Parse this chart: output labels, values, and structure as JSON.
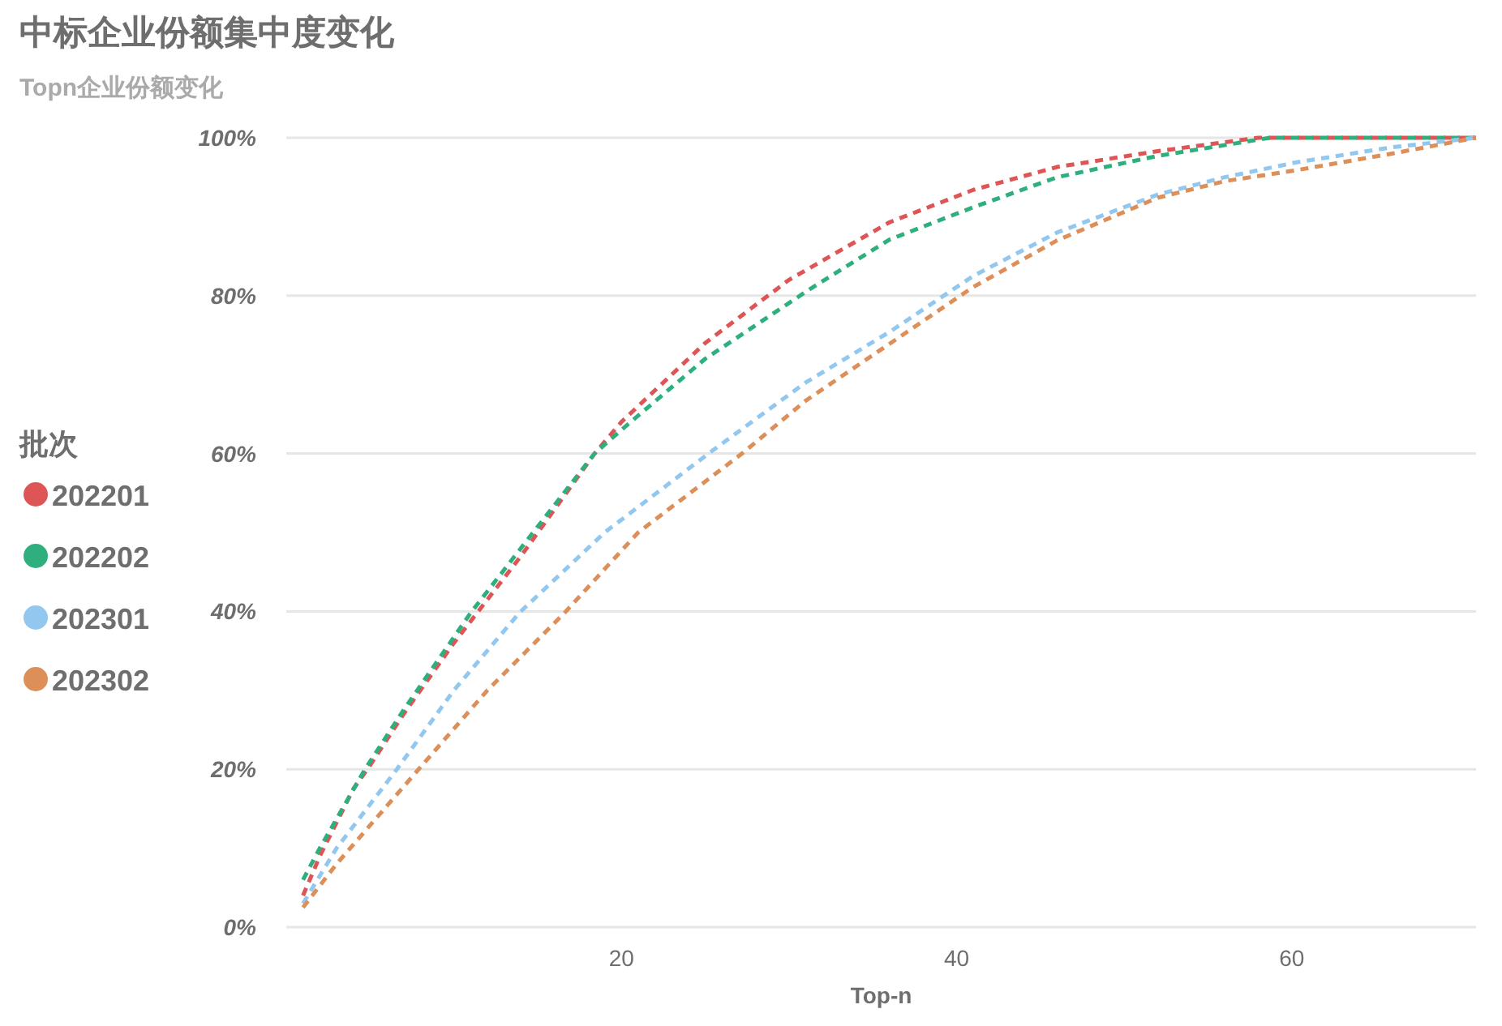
{
  "chart_data": {
    "type": "line",
    "title": "中标企业份额集中度变化",
    "subtitle": "Topn企业份额变化",
    "xlabel": "Top-n",
    "legend_title": "批次",
    "xlim": [
      0,
      71
    ],
    "xticks": [
      20,
      40,
      60
    ],
    "ylim": [
      0,
      100
    ],
    "yticks": [
      {
        "value": 0,
        "label": "0%"
      },
      {
        "value": 20,
        "label": "20%"
      },
      {
        "value": 40,
        "label": "40%"
      },
      {
        "value": 60,
        "label": "60%"
      },
      {
        "value": 80,
        "label": "80%"
      },
      {
        "value": 100,
        "label": "100%"
      }
    ],
    "grid": "y",
    "legend": "left",
    "line_style": "dashed",
    "marker": "none",
    "series": [
      {
        "name": "202201",
        "color": "#dd5555",
        "x": [
          1,
          2,
          4,
          5,
          7,
          10,
          14,
          18.4,
          20,
          25,
          30,
          36,
          41,
          46,
          52,
          58,
          71
        ],
        "values": [
          4,
          9,
          17.5,
          20.5,
          27,
          36,
          47,
          60,
          64,
          74,
          82,
          89.3,
          93.4,
          96.3,
          98.3,
          100,
          100
        ]
      },
      {
        "name": "202202",
        "color": "#2eaf7d",
        "x": [
          1,
          2,
          4.7,
          7,
          11,
          14,
          18.4,
          20,
          25,
          31.3,
          36,
          41,
          46,
          52,
          58.7,
          71
        ],
        "values": [
          6,
          10,
          20,
          27.5,
          39.8,
          48,
          60,
          63,
          72,
          80.9,
          87.1,
          91.2,
          95,
          97.7,
          100,
          100
        ]
      },
      {
        "name": "202301",
        "color": "#92c8f0",
        "x": [
          1,
          3,
          6.6,
          10,
          13.9,
          19,
          25.2,
          31,
          36,
          41,
          46,
          52,
          56,
          60.3,
          66,
          71
        ],
        "values": [
          3,
          10,
          20,
          30,
          39.8,
          50,
          60,
          69,
          75.4,
          82.5,
          88,
          92.8,
          95,
          96.9,
          98.8,
          100
        ]
      },
      {
        "name": "202302",
        "color": "#dd8f5a",
        "x": [
          1,
          3,
          7.9,
          12,
          16.6,
          21,
          27.2,
          31,
          36,
          41,
          46,
          52,
          56,
          60.3,
          66,
          71
        ],
        "values": [
          2.5,
          8,
          20,
          30,
          39.8,
          50,
          60,
          66.7,
          73.9,
          81.1,
          87,
          92.4,
          94.5,
          95.9,
          98,
          100
        ]
      }
    ]
  }
}
